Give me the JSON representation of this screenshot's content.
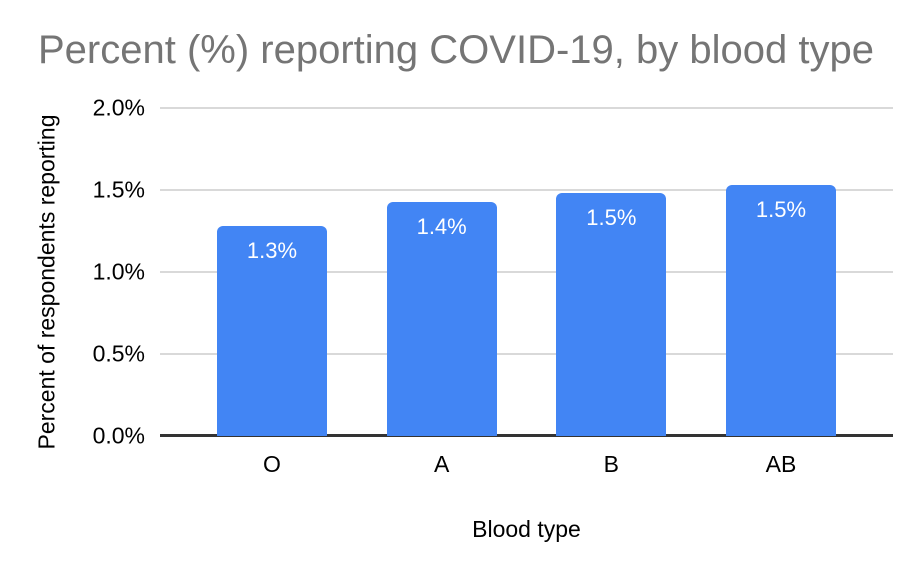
{
  "chart_data": {
    "type": "bar",
    "title": "Percent (%) reporting COVID-19, by blood type",
    "xlabel": "Blood type",
    "ylabel": "Percent of respondents reporting",
    "categories": [
      "O",
      "A",
      "B",
      "AB"
    ],
    "values": [
      1.28,
      1.43,
      1.48,
      1.53
    ],
    "bar_labels": [
      "1.3%",
      "1.4%",
      "1.5%",
      "1.5%"
    ],
    "ylim": [
      0,
      2.0
    ],
    "y_ticks": [
      {
        "value": 0.0,
        "label": "0.0%"
      },
      {
        "value": 0.5,
        "label": "0.5%"
      },
      {
        "value": 1.0,
        "label": "1.0%"
      },
      {
        "value": 1.5,
        "label": "1.5%"
      },
      {
        "value": 2.0,
        "label": "2.0%"
      }
    ],
    "grid": true,
    "legend": "none",
    "colors": {
      "bar": "#4285f4",
      "bar_label": "#ffffff",
      "title": "#757575",
      "axis_text": "#000000",
      "gridline": "#d9d9d9",
      "axis_line": "#333333",
      "background": "#ffffff"
    }
  }
}
